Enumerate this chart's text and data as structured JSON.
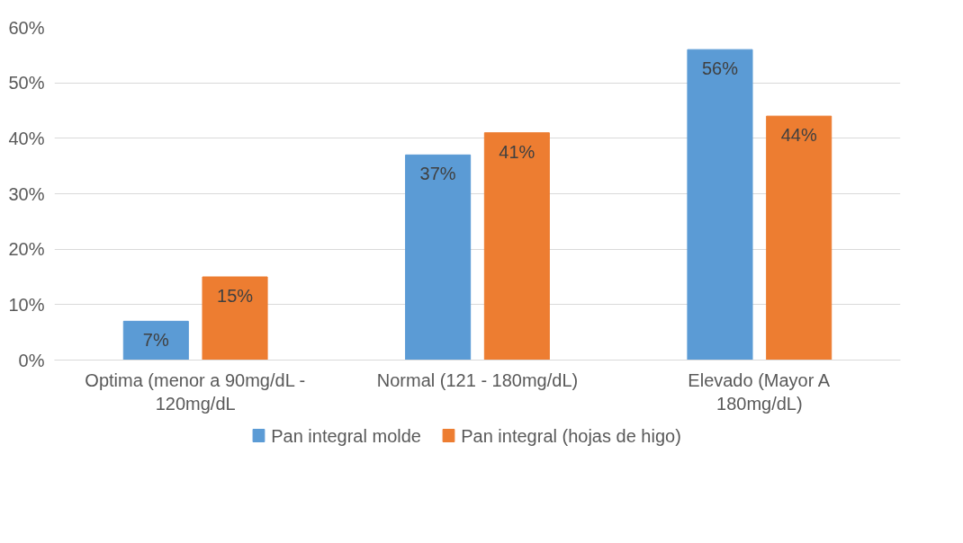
{
  "chart_data": {
    "type": "bar",
    "categories": [
      "Optima (menor a 90mg/dL - 120mg/dL",
      "Normal (121 - 180mg/dL)",
      "Elevado (Mayor A 180mg/dL)"
    ],
    "series": [
      {
        "name": "Pan integral molde",
        "color": "#5b9bd5",
        "values": [
          7,
          37,
          56
        ],
        "value_labels": [
          "7%",
          "37%",
          "56%"
        ]
      },
      {
        "name": "Pan integral (hojas de higo)",
        "color": "#ed7d31",
        "values": [
          15,
          41,
          44
        ],
        "value_labels": [
          "15%",
          "41%",
          "44%"
        ]
      }
    ],
    "ylim": [
      0,
      60
    ],
    "yticks": [
      {
        "value": 0,
        "label": "0%"
      },
      {
        "value": 10,
        "label": "10%"
      },
      {
        "value": 20,
        "label": "20%"
      },
      {
        "value": 30,
        "label": "30%"
      },
      {
        "value": 40,
        "label": "40%"
      },
      {
        "value": 50,
        "label": "50%"
      },
      {
        "value": 60,
        "label": "60%"
      }
    ],
    "grid": "y",
    "legend": "bottom"
  }
}
